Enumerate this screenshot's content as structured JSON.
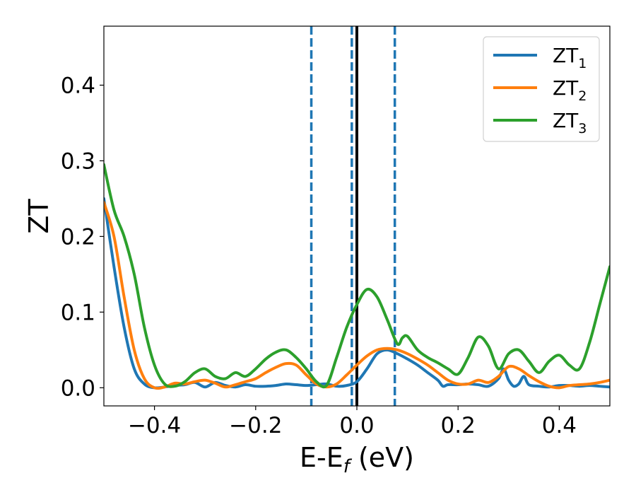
{
  "chart_data": {
    "type": "line",
    "xlabel": "E-E",
    "xlabel_sub": "f",
    "xlabel_unit": " (eV)",
    "ylabel": "ZT",
    "xlim": [
      -0.5,
      0.5
    ],
    "ylim": [
      -0.024,
      0.478
    ],
    "xticks": [
      -0.4,
      -0.2,
      0.0,
      0.2,
      0.4
    ],
    "xtick_labels": [
      "−0.4",
      "−0.2",
      "0.0",
      "0.2",
      "0.4"
    ],
    "yticks": [
      0.0,
      0.1,
      0.2,
      0.3,
      0.4
    ],
    "ytick_labels": [
      "0.0",
      "0.1",
      "0.2",
      "0.3",
      "0.4"
    ],
    "grid": false,
    "legend_position": "top-right",
    "colors": {
      "zt1": "#1f77b4",
      "zt2": "#ff7f0e",
      "zt3": "#2ca02c",
      "fermi": "#000000"
    },
    "vlines": {
      "solid": [
        {
          "x": 0.0,
          "color": "#000000"
        }
      ],
      "dashed": [
        {
          "x": -0.09,
          "color": "#1f77b4"
        },
        {
          "x": -0.01,
          "color": "#1f77b4"
        },
        {
          "x": 0.075,
          "color": "#1f77b4"
        }
      ]
    },
    "series": [
      {
        "name": "ZT",
        "name_sub": "1",
        "color": "#1f77b4",
        "x": [
          -0.5,
          -0.48,
          -0.46,
          -0.44,
          -0.42,
          -0.4,
          -0.38,
          -0.36,
          -0.34,
          -0.32,
          -0.3,
          -0.28,
          -0.26,
          -0.24,
          -0.22,
          -0.2,
          -0.18,
          -0.16,
          -0.14,
          -0.12,
          -0.1,
          -0.08,
          -0.06,
          -0.04,
          -0.02,
          0.0,
          0.02,
          0.04,
          0.06,
          0.08,
          0.1,
          0.12,
          0.14,
          0.16,
          0.17,
          0.18,
          0.2,
          0.22,
          0.24,
          0.26,
          0.28,
          0.29,
          0.3,
          0.31,
          0.32,
          0.33,
          0.34,
          0.36,
          0.38,
          0.4,
          0.42,
          0.44,
          0.46,
          0.48,
          0.5
        ],
        "y": [
          0.25,
          0.16,
          0.08,
          0.025,
          0.005,
          0.0,
          0.001,
          0.003,
          0.004,
          0.007,
          0.001,
          0.007,
          0.003,
          0.001,
          0.004,
          0.002,
          0.002,
          0.003,
          0.005,
          0.004,
          0.003,
          0.004,
          0.005,
          0.002,
          0.003,
          0.008,
          0.025,
          0.045,
          0.05,
          0.045,
          0.038,
          0.03,
          0.02,
          0.01,
          0.002,
          0.004,
          0.004,
          0.005,
          0.004,
          0.002,
          0.012,
          0.025,
          0.01,
          0.002,
          0.005,
          0.015,
          0.004,
          0.002,
          0.001,
          0.003,
          0.003,
          0.002,
          0.003,
          0.002,
          0.001
        ]
      },
      {
        "name": "ZT",
        "name_sub": "2",
        "color": "#ff7f0e",
        "x": [
          -0.5,
          -0.48,
          -0.46,
          -0.44,
          -0.42,
          -0.4,
          -0.38,
          -0.36,
          -0.34,
          -0.32,
          -0.3,
          -0.28,
          -0.26,
          -0.24,
          -0.22,
          -0.2,
          -0.18,
          -0.16,
          -0.14,
          -0.12,
          -0.1,
          -0.08,
          -0.06,
          -0.04,
          -0.02,
          0.0,
          0.02,
          0.04,
          0.06,
          0.08,
          0.1,
          0.12,
          0.14,
          0.16,
          0.18,
          0.2,
          0.22,
          0.24,
          0.26,
          0.28,
          0.3,
          0.32,
          0.34,
          0.36,
          0.38,
          0.4,
          0.42,
          0.44,
          0.46,
          0.48,
          0.5
        ],
        "y": [
          0.245,
          0.2,
          0.12,
          0.05,
          0.012,
          0.0,
          0.001,
          0.006,
          0.005,
          0.008,
          0.01,
          0.006,
          0.001,
          0.004,
          0.008,
          0.012,
          0.02,
          0.027,
          0.032,
          0.03,
          0.017,
          0.005,
          0.001,
          0.005,
          0.017,
          0.03,
          0.042,
          0.05,
          0.052,
          0.05,
          0.045,
          0.038,
          0.03,
          0.02,
          0.01,
          0.005,
          0.005,
          0.01,
          0.007,
          0.015,
          0.028,
          0.025,
          0.016,
          0.008,
          0.002,
          0.0,
          0.003,
          0.004,
          0.005,
          0.007,
          0.01
        ]
      },
      {
        "name": "ZT",
        "name_sub": "3",
        "color": "#2ca02c",
        "x": [
          -0.5,
          -0.48,
          -0.46,
          -0.44,
          -0.42,
          -0.4,
          -0.38,
          -0.36,
          -0.34,
          -0.32,
          -0.3,
          -0.28,
          -0.26,
          -0.24,
          -0.22,
          -0.2,
          -0.18,
          -0.16,
          -0.14,
          -0.12,
          -0.1,
          -0.08,
          -0.06,
          -0.04,
          -0.02,
          0.0,
          0.02,
          0.04,
          0.06,
          0.08,
          0.09,
          0.1,
          0.12,
          0.14,
          0.16,
          0.18,
          0.2,
          0.22,
          0.24,
          0.26,
          0.28,
          0.3,
          0.32,
          0.34,
          0.36,
          0.38,
          0.4,
          0.42,
          0.44,
          0.46,
          0.48,
          0.5
        ],
        "y": [
          0.295,
          0.235,
          0.2,
          0.15,
          0.08,
          0.03,
          0.005,
          0.002,
          0.008,
          0.02,
          0.025,
          0.015,
          0.012,
          0.02,
          0.015,
          0.025,
          0.038,
          0.047,
          0.05,
          0.04,
          0.025,
          0.008,
          0.003,
          0.04,
          0.08,
          0.11,
          0.13,
          0.12,
          0.09,
          0.058,
          0.066,
          0.068,
          0.05,
          0.04,
          0.033,
          0.025,
          0.018,
          0.04,
          0.067,
          0.055,
          0.025,
          0.045,
          0.05,
          0.035,
          0.02,
          0.035,
          0.043,
          0.03,
          0.025,
          0.06,
          0.11,
          0.16
        ]
      }
    ]
  }
}
